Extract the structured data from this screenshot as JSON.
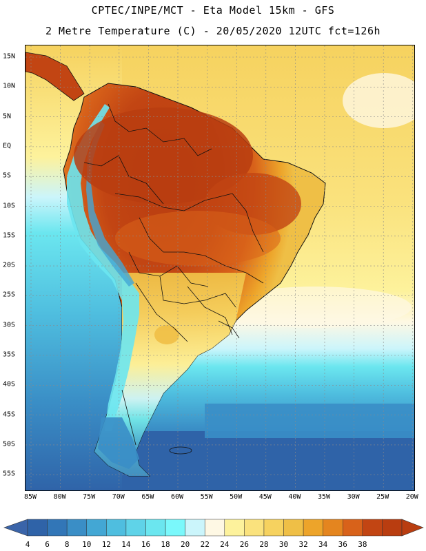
{
  "header": {
    "line1": "CPTEC/INPE/MCT -  Eta Model 15km - GFS",
    "line2": "2 Metre Temperature (C) - 20/05/2020 12UTC fct=126h"
  },
  "map": {
    "lat_labels": [
      "15N",
      "10N",
      "5N",
      "EQ",
      "5S",
      "10S",
      "15S",
      "20S",
      "25S",
      "30S",
      "35S",
      "40S",
      "45S",
      "50S",
      "55S"
    ],
    "lon_labels": [
      "85W",
      "80W",
      "75W",
      "70W",
      "65W",
      "60W",
      "55W",
      "50W",
      "45W",
      "40W",
      "35W",
      "30W",
      "25W",
      "20W"
    ]
  },
  "colorbar": {
    "labels": [
      "4",
      "6",
      "8",
      "10",
      "12",
      "14",
      "16",
      "18",
      "20",
      "22",
      "24",
      "26",
      "28",
      "30",
      "32",
      "34",
      "36",
      "38"
    ],
    "colors": [
      "#2f63a8",
      "#3276b7",
      "#3a8ec6",
      "#43a7d4",
      "#4fbedf",
      "#5fd3e8",
      "#6be6ef",
      "#7af8fb",
      "#cbf5fb",
      "#fef8e4",
      "#fdf29c",
      "#fae27d",
      "#f6d25f",
      "#efbf46",
      "#eda42a",
      "#e4851f",
      "#d8621a",
      "#c24513",
      "#b93d10"
    ],
    "left_arrow_color": "#3a64a9",
    "right_arrow_color": "#b93d10"
  },
  "palette": {
    "ocean_deep": "#2f63a8",
    "ocean_mid": "#3a8ec6",
    "ocean_light": "#4fbedf",
    "cyan": "#6be6ef",
    "ocean_warm": "#fae27d",
    "ocean_warm2": "#f6d25f",
    "pale": "#fef8e4",
    "land_hot": "#b93d10",
    "land_warm": "#d8621a",
    "land_mid": "#eda42a",
    "land_tan": "#f6d25f",
    "andes_cold": "#6be6ef",
    "andes_colder": "#43a7d4",
    "patagonia": "#3a8ec6",
    "grid": "#8a8a8a",
    "border": "#111111"
  }
}
